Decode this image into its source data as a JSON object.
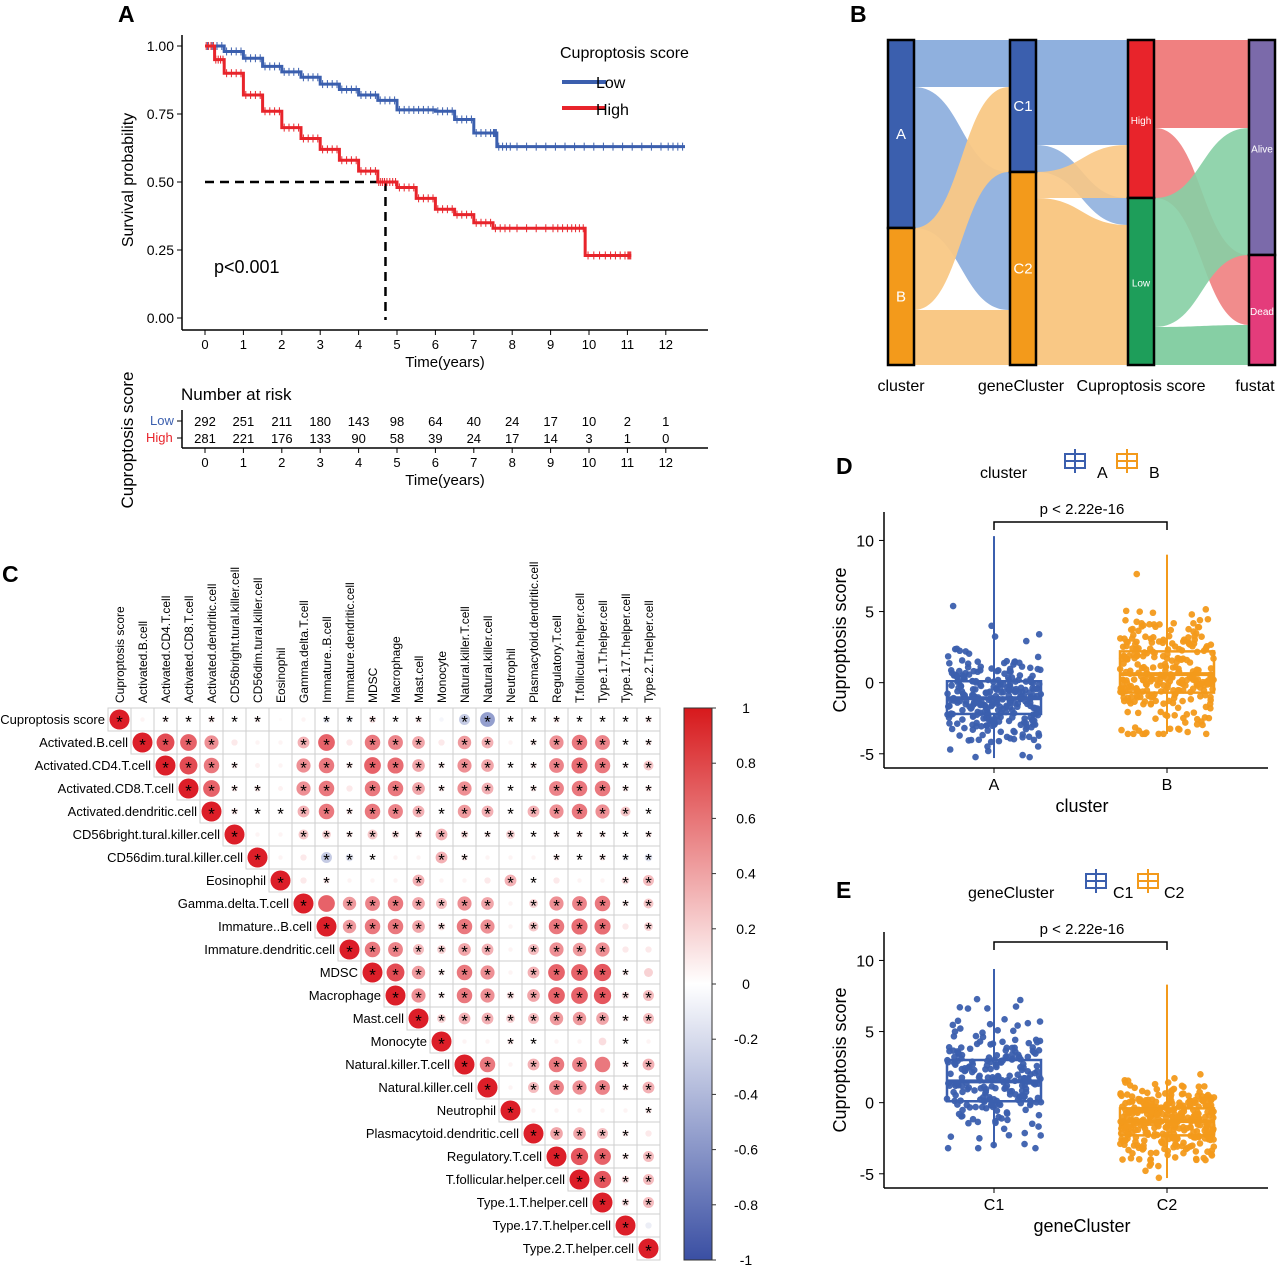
{
  "panels": {
    "A": {
      "letter": "A",
      "legend_title": "Cuproptosis score",
      "legend_items": [
        "Low",
        "High"
      ],
      "pvalue": "p<0.001",
      "risk_table_title": "Number at risk",
      "risk_axis_label": "Cuproptosis score",
      "risk_rows": [
        {
          "label": "Low",
          "counts": [
            "292",
            "251",
            "211",
            "180",
            "143",
            "98",
            "64",
            "40",
            "24",
            "17",
            "10",
            "2",
            "1"
          ]
        },
        {
          "label": "High",
          "counts": [
            "281",
            "221",
            "176",
            "133",
            "90",
            "58",
            "39",
            "24",
            "17",
            "14",
            "3",
            "1",
            "0"
          ]
        }
      ]
    },
    "B": {
      "letter": "B",
      "axis_labels": [
        "cluster",
        "geneCluster",
        "Cuproptosis score",
        "fustat"
      ],
      "stratum_labels": [
        "A",
        "B",
        "C1",
        "C2",
        "High",
        "Low",
        "Alive",
        "Dead"
      ]
    },
    "C": {
      "letter": "C"
    },
    "D": {
      "letter": "D",
      "legend_title": "cluster",
      "groups": [
        "A",
        "B"
      ],
      "pvalue": "p < 2.22e-16",
      "xlabel": "cluster",
      "ylabel": "Cuproptosis score"
    },
    "E": {
      "letter": "E",
      "legend_title": "geneCluster",
      "groups": [
        "C1",
        "C2"
      ],
      "pvalue": "p < 2.22e-16",
      "xlabel": "geneCluster",
      "ylabel": "Cuproptosis score"
    }
  },
  "colors": {
    "blue": "#3B5FAE",
    "red": "#E8242B",
    "orange": "#F39A1B",
    "green": "#1E9E5A",
    "purple": "#7B6AAA",
    "pink": "#E43C7B"
  },
  "chart_data": [
    {
      "id": "A_km",
      "type": "line",
      "title": "",
      "xlabel": "Time(years)",
      "ylabel": "Survival probability",
      "xlim": [
        0,
        12.5
      ],
      "ylim": [
        0,
        1
      ],
      "xticks": [
        0,
        1,
        2,
        3,
        4,
        5,
        6,
        7,
        8,
        9,
        10,
        11,
        12
      ],
      "yticks": [
        0.0,
        0.25,
        0.5,
        0.75,
        1.0
      ],
      "ytick_labels": [
        "0.00",
        "0.25",
        "0.50",
        "0.75",
        "1.00"
      ],
      "series": [
        {
          "name": "Low",
          "x": [
            0,
            0.5,
            1,
            1.5,
            2,
            2.5,
            3,
            3.5,
            4,
            4.5,
            5,
            5.5,
            6,
            6.5,
            7,
            7.5,
            7.6,
            8,
            9,
            10,
            11,
            12,
            12.5
          ],
          "y": [
            1.0,
            0.98,
            0.955,
            0.925,
            0.905,
            0.885,
            0.86,
            0.84,
            0.82,
            0.8,
            0.765,
            0.765,
            0.76,
            0.73,
            0.68,
            0.68,
            0.63,
            0.63,
            0.63,
            0.63,
            0.63,
            0.63,
            0.63
          ]
        },
        {
          "name": "High",
          "x": [
            0,
            0.25,
            0.5,
            1,
            1.5,
            2,
            2.5,
            3,
            3.5,
            4,
            4.5,
            4.7,
            5,
            5.5,
            6,
            6.5,
            7,
            7.5,
            8,
            9,
            9.5,
            9.9,
            10.5,
            11,
            11.1
          ],
          "y": [
            1.0,
            0.95,
            0.9,
            0.82,
            0.76,
            0.7,
            0.66,
            0.62,
            0.58,
            0.54,
            0.5,
            0.5,
            0.48,
            0.44,
            0.4,
            0.38,
            0.35,
            0.33,
            0.33,
            0.33,
            0.33,
            0.23,
            0.23,
            0.23,
            0.23
          ]
        }
      ],
      "median_survival_high_years": 4.7
    },
    {
      "id": "C_corr",
      "type": "heatmap",
      "title": "",
      "variables": [
        "Cuproptosis score",
        "Activated.B.cell",
        "Activated.CD4.T.cell",
        "Activated.CD8.T.cell",
        "Activated.dendritic.cell",
        "CD56bright.tural.killer.cell",
        "CD56dim.tural.killer.cell",
        "Eosinophil",
        "Gamma.delta.T.cell",
        "Immature..B.cell",
        "Immature.dendritic.cell",
        "MDSC",
        "Macrophage",
        "Mast.cell",
        "Monocyte",
        "Natural.killer.T.cell",
        "Natural.killer.cell",
        "Neutrophil",
        "Plasmacytoid.dendritic.cell",
        "Regulatory.T.cell",
        "T.follicular.helper.cell",
        "Type.1.T.helper.cell",
        "Type.17.T.helper.cell",
        "Type.2.T.helper.cell"
      ],
      "upper_triangle_rows": [
        [
          1,
          0.05,
          0.08,
          0.06,
          0.1,
          0.04,
          0.08,
          0.02,
          0.05,
          -0.12,
          -0.1,
          0.12,
          0.05,
          0.1,
          -0.05,
          -0.3,
          -0.55,
          0.05,
          0.08,
          0.1,
          0.05,
          0.05,
          0.05,
          0.1
        ],
        [
          1,
          0.8,
          0.7,
          0.5,
          0.1,
          0.05,
          0.05,
          0.35,
          0.7,
          0.1,
          0.6,
          0.55,
          0.4,
          0.1,
          0.45,
          0.35,
          0.05,
          0.1,
          0.5,
          0.6,
          0.55,
          0.05,
          0.1
        ],
        [
          1,
          0.8,
          0.6,
          0.1,
          0.06,
          0.05,
          0.5,
          0.6,
          0.1,
          0.7,
          0.65,
          0.4,
          0.1,
          0.5,
          0.4,
          0.05,
          0.1,
          0.55,
          0.65,
          0.6,
          0.08,
          0.25
        ],
        [
          1,
          0.7,
          0.1,
          0.1,
          0.06,
          0.5,
          0.6,
          0.1,
          0.6,
          0.6,
          0.4,
          0.1,
          0.5,
          0.35,
          0.05,
          0.1,
          0.55,
          0.6,
          0.6,
          0.1,
          0.1
        ],
        [
          1,
          0.1,
          0.05,
          0.05,
          0.35,
          0.6,
          0.1,
          0.6,
          0.55,
          0.35,
          0.05,
          0.45,
          0.35,
          0.05,
          0.35,
          0.5,
          0.6,
          0.5,
          0.25,
          0.05
        ],
        [
          1,
          0.05,
          0.05,
          0.25,
          0.2,
          0.1,
          0.25,
          0.15,
          0.15,
          0.35,
          0.15,
          0.1,
          0.2,
          0.05,
          0.1,
          0.1,
          0.1,
          0.05,
          0.1
        ],
        [
          1,
          0.05,
          0.1,
          -0.3,
          -0.15,
          0.05,
          0.05,
          0.05,
          0.35,
          0.1,
          0.05,
          0.05,
          0.05,
          0.1,
          0.05,
          0.1,
          -0.1,
          -0.15
        ],
        [
          1,
          0.1,
          0.1,
          0.05,
          0.05,
          0.05,
          0.35,
          0.05,
          0.05,
          0.1,
          0.35,
          0.05,
          0.1,
          0.05,
          0.05,
          0.15,
          0.3
        ],
        [
          1,
          0.7,
          0.45,
          0.55,
          0.6,
          0.4,
          0.3,
          0.5,
          0.4,
          0.05,
          0.2,
          0.5,
          0.55,
          0.6,
          0.1,
          0.25
        ],
        [
          1,
          0.45,
          0.6,
          0.6,
          0.4,
          0.15,
          0.6,
          0.5,
          0.05,
          0.25,
          0.6,
          0.65,
          0.65,
          0.1,
          0.2
        ],
        [
          1,
          0.6,
          0.55,
          0.3,
          0.2,
          0.4,
          0.35,
          0.05,
          0.3,
          0.5,
          0.45,
          0.5,
          0.1,
          0.1
        ],
        [
          1,
          0.8,
          0.45,
          0.1,
          0.6,
          0.5,
          0.05,
          0.35,
          0.7,
          0.7,
          0.75,
          0.1,
          0.2
        ],
        [
          1,
          0.5,
          0.1,
          0.6,
          0.5,
          0.15,
          0.4,
          0.7,
          0.7,
          0.75,
          0.15,
          0.3
        ],
        [
          1,
          0.2,
          0.35,
          0.35,
          0.2,
          0.3,
          0.45,
          0.45,
          0.4,
          0.1,
          0.3
        ],
        [
          1,
          0.05,
          0.05,
          0.1,
          0.05,
          0.05,
          0.05,
          0.15,
          0.05,
          0.05
        ],
        [
          1,
          0.6,
          0.05,
          0.35,
          0.6,
          0.55,
          0.6,
          0.1,
          0.35
        ],
        [
          1,
          0.05,
          0.3,
          0.55,
          0.5,
          0.55,
          0.1,
          0.35
        ],
        [
          1,
          0.05,
          0.05,
          0.05,
          0.05,
          0.05,
          0.1
        ],
        [
          1,
          0.4,
          0.4,
          0.3,
          0.1,
          0.1
        ],
        [
          1,
          0.75,
          0.7,
          0.1,
          0.3
        ],
        [
          1,
          0.75,
          0.15,
          0.3
        ],
        [
          1,
          0.15,
          0.3
        ],
        [
          1,
          -0.1
        ],
        [
          1
        ]
      ],
      "not_significant": [
        [
          0,
          1
        ],
        [
          0,
          7
        ],
        [
          0,
          8
        ],
        [
          0,
          14
        ],
        [
          1,
          5
        ],
        [
          1,
          6
        ],
        [
          1,
          7
        ],
        [
          1,
          10
        ],
        [
          1,
          14
        ],
        [
          1,
          17
        ],
        [
          2,
          6
        ],
        [
          2,
          7
        ],
        [
          3,
          7
        ],
        [
          3,
          10
        ],
        [
          5,
          6
        ],
        [
          5,
          7
        ],
        [
          6,
          7
        ],
        [
          6,
          8
        ],
        [
          6,
          12
        ],
        [
          6,
          13
        ],
        [
          6,
          16
        ],
        [
          6,
          17
        ],
        [
          6,
          18
        ],
        [
          7,
          8
        ],
        [
          7,
          10
        ],
        [
          7,
          11
        ],
        [
          7,
          12
        ],
        [
          7,
          14
        ],
        [
          7,
          15
        ],
        [
          7,
          16
        ],
        [
          7,
          19
        ],
        [
          7,
          20
        ],
        [
          7,
          21
        ],
        [
          8,
          9
        ],
        [
          8,
          17
        ],
        [
          9,
          17
        ],
        [
          9,
          22
        ],
        [
          10,
          17
        ],
        [
          10,
          22
        ],
        [
          10,
          23
        ],
        [
          11,
          17
        ],
        [
          11,
          23
        ],
        [
          14,
          15
        ],
        [
          14,
          16
        ],
        [
          14,
          19
        ],
        [
          14,
          20
        ],
        [
          14,
          21
        ],
        [
          14,
          23
        ],
        [
          15,
          17
        ],
        [
          15,
          21
        ],
        [
          16,
          17
        ],
        [
          17,
          18
        ],
        [
          17,
          19
        ],
        [
          17,
          20
        ],
        [
          17,
          21
        ],
        [
          17,
          22
        ],
        [
          18,
          23
        ],
        [
          22,
          23
        ]
      ],
      "color_scale": {
        "min": -1,
        "max": 1,
        "ticks": [
          "1",
          "0.8",
          "0.6",
          "0.4",
          "0.2",
          "0",
          "-0.2",
          "-0.4",
          "-0.6",
          "-0.8",
          "-1"
        ]
      }
    },
    {
      "id": "D_box",
      "type": "box",
      "title": "",
      "xlabel": "cluster",
      "ylabel": "Cuproptosis score",
      "categories": [
        "A",
        "B"
      ],
      "ylim": [
        -6,
        12
      ],
      "yticks": [
        -5,
        0,
        5,
        10
      ],
      "series": [
        {
          "name": "A",
          "median": -1.1,
          "q1": -2.2,
          "q3": 0.1,
          "whisker_low": -5.3,
          "whisker_high": 10.3,
          "n": 292
        },
        {
          "name": "B",
          "median": 0.6,
          "q1": -0.7,
          "q3": 2.2,
          "whisker_low": -3.6,
          "whisker_high": 9.0,
          "n": 281
        }
      ]
    },
    {
      "id": "E_box",
      "type": "box",
      "title": "",
      "xlabel": "geneCluster",
      "ylabel": "Cuproptosis score",
      "categories": [
        "C1",
        "C2"
      ],
      "ylim": [
        -6,
        12
      ],
      "yticks": [
        -5,
        0,
        5,
        10
      ],
      "series": [
        {
          "name": "C1",
          "median": 1.5,
          "q1": 0.1,
          "q3": 3.0,
          "whisker_low": -3.2,
          "whisker_high": 9.4,
          "n": 230
        },
        {
          "name": "C2",
          "median": -1.3,
          "q1": -2.3,
          "q3": -0.4,
          "whisker_low": -5.3,
          "whisker_high": 8.3,
          "n": 343
        }
      ]
    }
  ]
}
